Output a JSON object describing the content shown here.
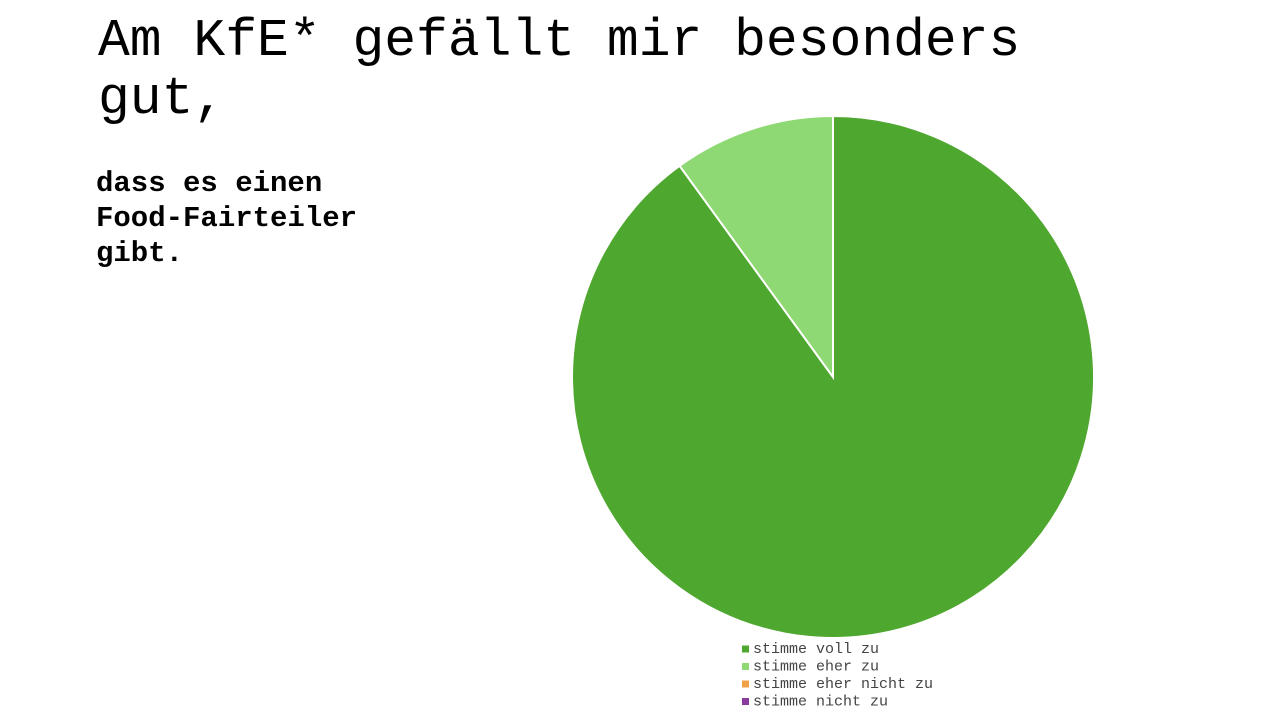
{
  "chart_data": {
    "type": "pie",
    "title": "Am KfE* gefällt mir besonders gut,",
    "subtitle": "dass es einen Food-Fairteiler gibt.",
    "categories": [
      "stimme voll zu",
      "stimme eher zu",
      "stimme eher nicht zu",
      "stimme nicht zu"
    ],
    "values": [
      90,
      10,
      0,
      0
    ],
    "colors": [
      "#4ea72e",
      "#8ed973",
      "#f1a04a",
      "#8b3a9e"
    ],
    "legend": "bottom"
  }
}
